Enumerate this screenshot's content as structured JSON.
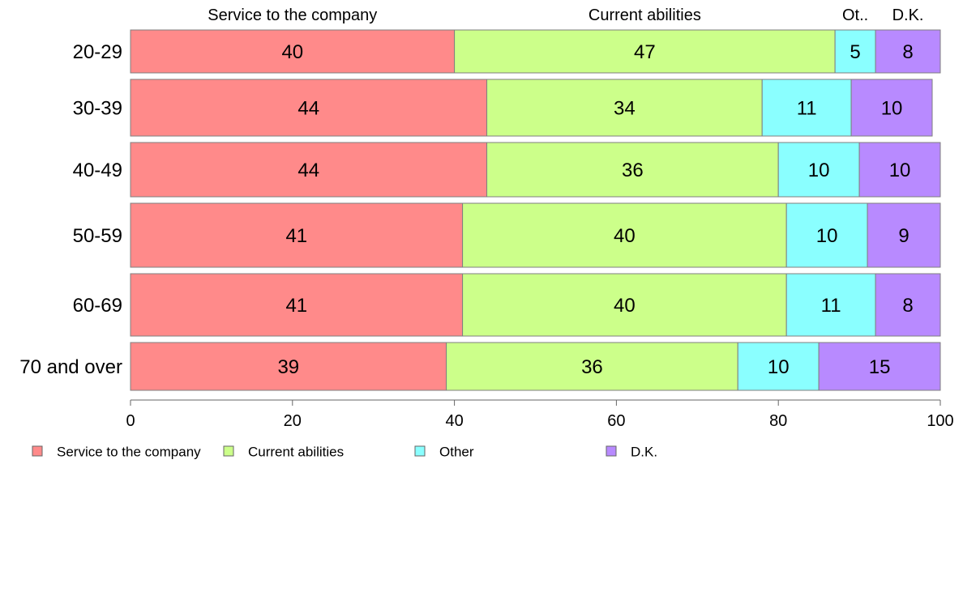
{
  "chart_data": {
    "type": "bar",
    "orientation": "horizontal",
    "stacked": true,
    "categories": [
      "20-29",
      "30-39",
      "40-49",
      "50-59",
      "60-69",
      "70 and over"
    ],
    "series": [
      {
        "name": "Service to the company",
        "top_label": "Service to the company",
        "color": "#FF8A8A",
        "values": [
          40,
          44,
          44,
          41,
          41,
          39
        ]
      },
      {
        "name": "Current abilities",
        "top_label": "Current abilities",
        "color": "#CCFF8A",
        "values": [
          47,
          34,
          36,
          40,
          40,
          36
        ]
      },
      {
        "name": "Other",
        "top_label": "Ot..",
        "color": "#8AFFFF",
        "values": [
          5,
          11,
          10,
          10,
          11,
          10
        ]
      },
      {
        "name": "D.K.",
        "top_label": "D.K.",
        "color": "#B88AFF",
        "values": [
          8,
          10,
          10,
          9,
          8,
          15
        ]
      }
    ],
    "xlim": [
      0,
      100
    ],
    "xticks": [
      0,
      20,
      40,
      60,
      80,
      100
    ],
    "legend_position": "bottom"
  }
}
